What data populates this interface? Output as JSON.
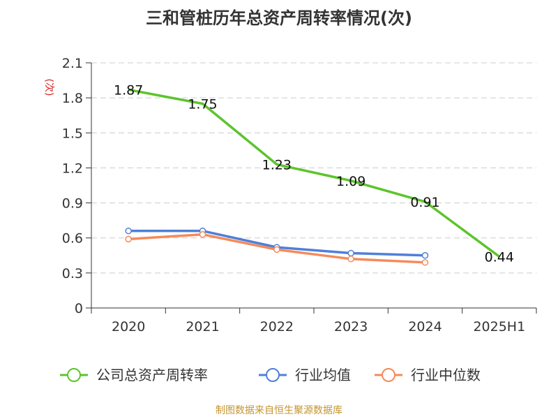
{
  "chart_data": {
    "type": "line",
    "title": "三和管桩历年总资产周转率情况(次)",
    "ylabel": "(次)",
    "xlabel": "",
    "categories": [
      "2020",
      "2021",
      "2022",
      "2023",
      "2024",
      "2025H1"
    ],
    "ylim": [
      0,
      2.1
    ],
    "yticks": [
      "0",
      "0.3",
      "0.6",
      "0.9",
      "1.2",
      "1.5",
      "1.8",
      "2.1"
    ],
    "grid": true,
    "legend_position": "bottom",
    "series": [
      {
        "name": "公司总资产周转率",
        "color": "#5cc42b",
        "values": [
          1.87,
          1.75,
          1.23,
          1.09,
          0.91,
          0.44
        ],
        "labels": [
          "1.87",
          "1.75",
          "1.23",
          "1.09",
          "0.91",
          "0.44"
        ]
      },
      {
        "name": "行业均值",
        "color": "#4f7fd9",
        "values": [
          0.66,
          0.66,
          0.52,
          0.47,
          0.45,
          null
        ]
      },
      {
        "name": "行业中位数",
        "color": "#f58a5a",
        "values": [
          0.59,
          0.63,
          0.5,
          0.42,
          0.39,
          null
        ]
      }
    ]
  },
  "source": "制图数据来自恒生聚源数据库"
}
